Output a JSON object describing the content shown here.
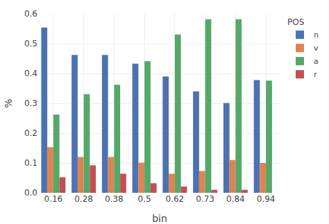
{
  "chart_data": {
    "type": "bar",
    "categories": [
      "0.16",
      "0.28",
      "0.38",
      "0.5",
      "0.62",
      "0.73",
      "0.84",
      "0.94"
    ],
    "series": [
      {
        "name": "n",
        "color": "#4C72B0",
        "values": [
          0.554,
          0.462,
          0.462,
          0.433,
          0.39,
          0.34,
          0.301,
          0.378
        ]
      },
      {
        "name": "v",
        "color": "#DD8452",
        "values": [
          0.153,
          0.12,
          0.12,
          0.101,
          0.064,
          0.073,
          0.11,
          0.1
        ]
      },
      {
        "name": "a",
        "color": "#55A868",
        "values": [
          0.262,
          0.331,
          0.362,
          0.441,
          0.531,
          0.582,
          0.582,
          0.376
        ]
      },
      {
        "name": "r",
        "color": "#C44E52",
        "values": [
          0.052,
          0.092,
          0.064,
          0.032,
          0.021,
          0.01,
          0.01,
          0.0
        ]
      }
    ],
    "xlabel": "bin",
    "ylabel": "%",
    "legend_title": "POS",
    "legend": "upper right",
    "ylim": [
      0,
      0.6
    ],
    "yticks": [
      {
        "value": 0,
        "label": "0.0"
      },
      0.1,
      0.2,
      0.3,
      0.4,
      0.5,
      0.6
    ],
    "grid": true
  }
}
